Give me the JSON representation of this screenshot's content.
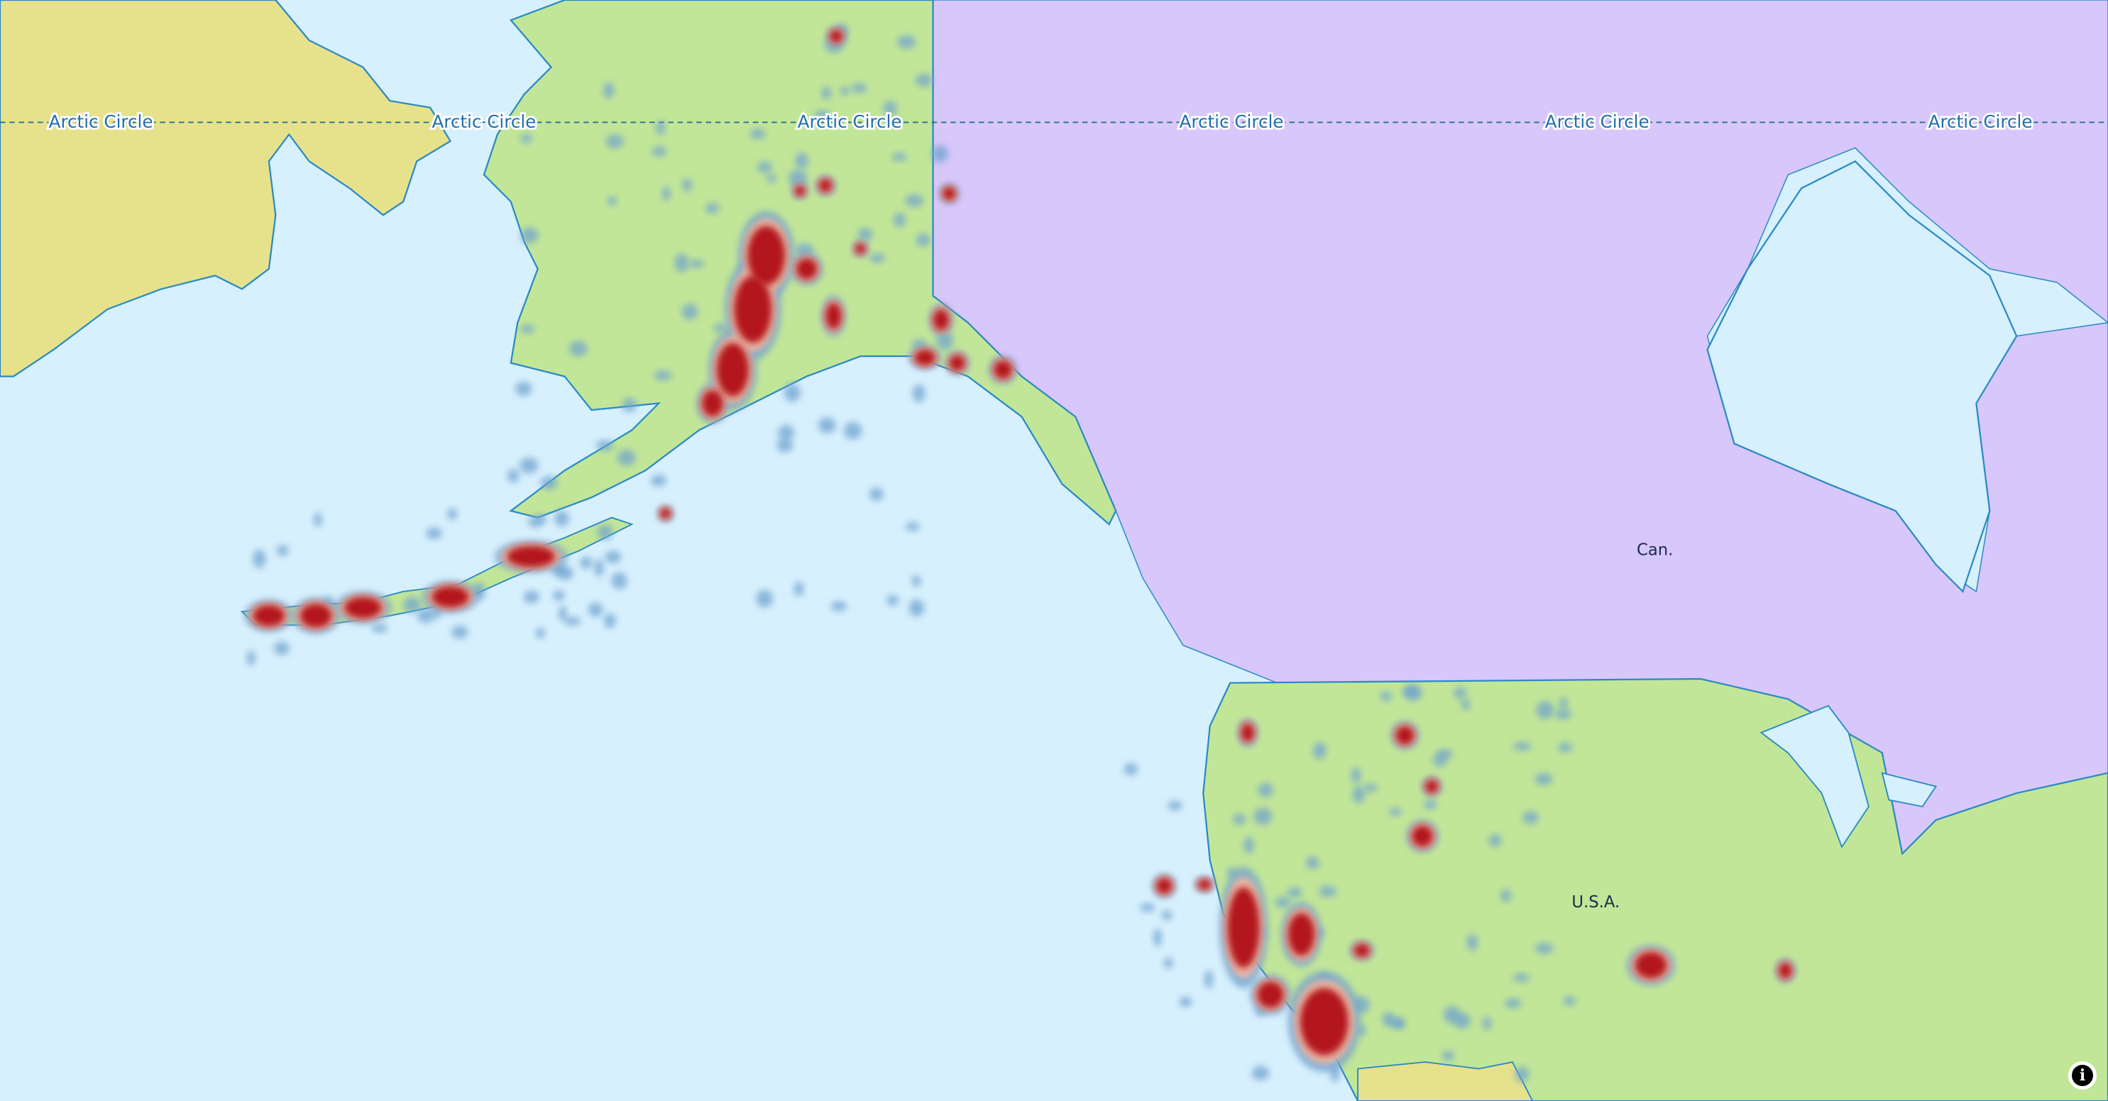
{
  "map": {
    "arctic_circle_label": "Arctic Circle",
    "country_labels": {
      "canada": "Can.",
      "usa": "U.S.A."
    },
    "colors": {
      "water": "#d7f0fd",
      "russia": "#e6e28c",
      "usa": "#c2e698",
      "canada": "#d8c7fb",
      "coastline": "#2b8ac4",
      "heat_high": "#b3121c",
      "heat_mid": "#f4b7a0",
      "heat_low": "#6fa3cf"
    },
    "layer": "earthquake density heatmap"
  },
  "controls": {
    "info_icon": "info-icon"
  }
}
